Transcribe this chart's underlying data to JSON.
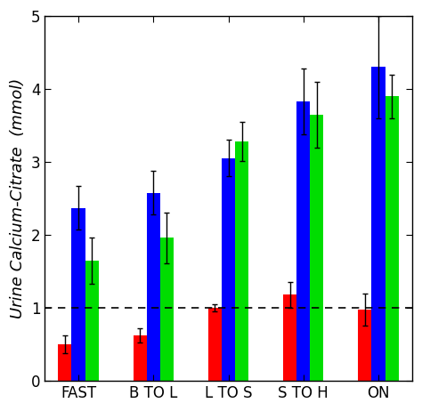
{
  "categories": [
    "FAST",
    "B TO L",
    "L TO S",
    "S TO H",
    "ON"
  ],
  "bar_values": {
    "red": [
      0.5,
      0.62,
      1.0,
      1.18,
      0.98
    ],
    "blue": [
      2.37,
      2.58,
      3.05,
      3.83,
      4.3
    ],
    "green": [
      1.65,
      1.96,
      3.28,
      3.65,
      3.9
    ]
  },
  "bar_errors": {
    "red": [
      0.12,
      0.1,
      0.05,
      0.18,
      0.22
    ],
    "blue": [
      0.3,
      0.3,
      0.25,
      0.45,
      0.7
    ],
    "green": [
      0.32,
      0.35,
      0.27,
      0.45,
      0.3
    ]
  },
  "colors": {
    "red": "#ff0000",
    "blue": "#0000ff",
    "green": "#00dd00"
  },
  "error_color": "#000000",
  "ylabel": "Urine Calcium-Citrate  (mmol)",
  "ylim": [
    0,
    5
  ],
  "yticks": [
    0,
    1,
    2,
    3,
    4,
    5
  ],
  "dashed_line_y": 1.0,
  "bar_width": 0.18,
  "background_color": "#ffffff",
  "axis_fontsize": 13,
  "tick_fontsize": 12
}
